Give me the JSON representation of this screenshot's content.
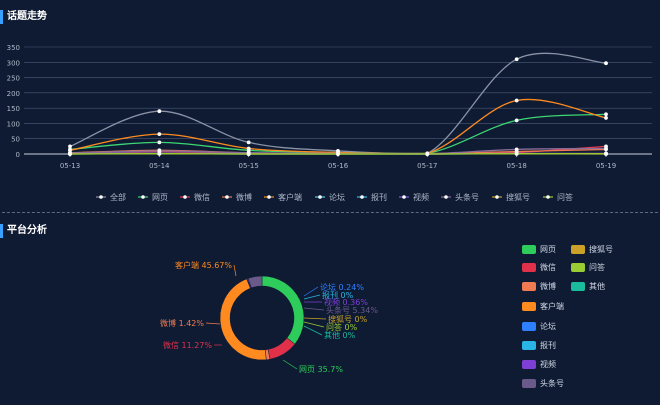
{
  "sections": {
    "trend_title": "话题走势",
    "platform_title": "平台分析"
  },
  "chart_data": [
    {
      "type": "line",
      "title": "话题走势",
      "categories": [
        "05-13",
        "05-14",
        "05-15",
        "05-16",
        "05-17",
        "05-18",
        "05-19"
      ],
      "ylim": [
        0,
        350
      ],
      "yticks": [
        0,
        50,
        100,
        150,
        200,
        250,
        300,
        350
      ],
      "grid": true,
      "legend_position": "bottom",
      "series": [
        {
          "name": "全部",
          "color": "#8a93a6",
          "values": [
            25,
            140,
            38,
            10,
            2,
            310,
            297
          ]
        },
        {
          "name": "网页",
          "color": "#3cd672",
          "values": [
            15,
            38,
            12,
            5,
            2,
            110,
            130
          ]
        },
        {
          "name": "微信",
          "color": "#e8384f",
          "values": [
            3,
            8,
            3,
            2,
            1,
            5,
            25
          ]
        },
        {
          "name": "微博",
          "color": "#f07b52",
          "values": [
            4,
            12,
            4,
            2,
            1,
            8,
            15
          ]
        },
        {
          "name": "客户端",
          "color": "#ff8a1f",
          "values": [
            12,
            65,
            18,
            5,
            2,
            175,
            118
          ]
        },
        {
          "name": "论坛",
          "color": "#4fc3f7",
          "values": [
            1,
            2,
            1,
            1,
            0,
            1,
            1
          ]
        },
        {
          "name": "报刊",
          "color": "#3ab6e8",
          "values": [
            0,
            1,
            0,
            0,
            0,
            1,
            1
          ]
        },
        {
          "name": "视频",
          "color": "#7b5bd6",
          "values": [
            1,
            2,
            1,
            1,
            0,
            2,
            2
          ]
        },
        {
          "name": "头条号",
          "color": "#8a6d9a",
          "values": [
            3,
            10,
            4,
            2,
            1,
            15,
            18
          ]
        },
        {
          "name": "搜狐号",
          "color": "#c9a227",
          "values": [
            0,
            1,
            0,
            0,
            0,
            1,
            1
          ]
        },
        {
          "name": "问答",
          "color": "#9acd32",
          "values": [
            0,
            1,
            0,
            0,
            0,
            1,
            0
          ]
        }
      ]
    },
    {
      "type": "pie",
      "title": "平台分析",
      "slices": [
        {
          "name": "网页",
          "value": 35.7,
          "label": "网页 35.7%",
          "color": "#2ecc5a"
        },
        {
          "name": "微信",
          "value": 11.27,
          "label": "微信 11.27%",
          "color": "#e0304a"
        },
        {
          "name": "微博",
          "value": 1.42,
          "label": "微博 1.42%",
          "color": "#f07b52"
        },
        {
          "name": "客户端",
          "value": 45.67,
          "label": "客户端 45.67%",
          "color": "#ff8a1f"
        },
        {
          "name": "论坛",
          "value": 0.24,
          "label": "论坛 0.24%",
          "color": "#2f80ff"
        },
        {
          "name": "报刊",
          "value": 0,
          "label": "报刊 0%",
          "color": "#29b6e6"
        },
        {
          "name": "视频",
          "value": 0.36,
          "label": "视频 0.36%",
          "color": "#7d3fd6"
        },
        {
          "name": "头条号",
          "value": 5.34,
          "label": "头条号 5.34%",
          "color": "#6a5a8a"
        },
        {
          "name": "搜狐号",
          "value": 0,
          "label": "搜狐号 0%",
          "color": "#c9a227"
        },
        {
          "name": "问答",
          "value": 0,
          "label": "问答 0%",
          "color": "#9acd32"
        },
        {
          "name": "其他",
          "value": 0,
          "label": "其他 0%",
          "color": "#1abc9c"
        }
      ],
      "legend": [
        "网页",
        "搜狐号",
        "微信",
        "问答",
        "微博",
        "其他",
        "客户端",
        "论坛",
        "报刊",
        "视频",
        "头条号"
      ]
    }
  ]
}
